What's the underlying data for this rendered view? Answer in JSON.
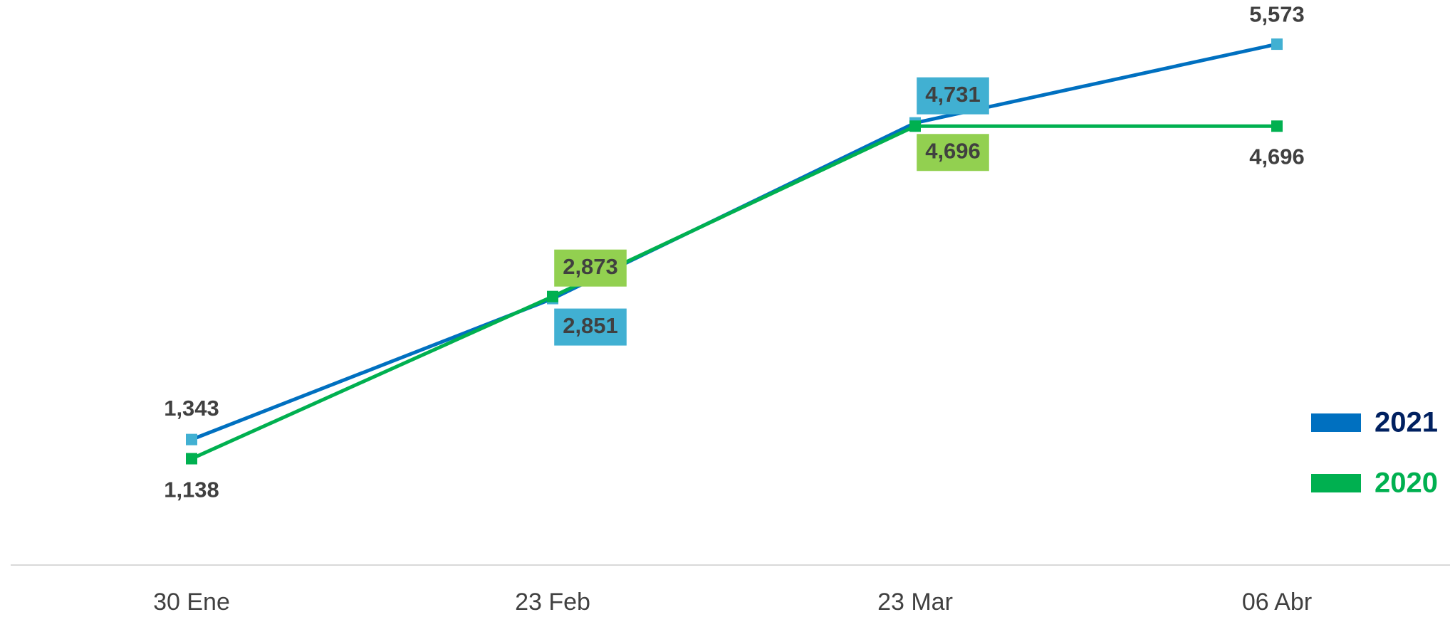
{
  "chart_data": {
    "type": "line",
    "categories": [
      "30 Ene",
      "23 Feb",
      "23 Mar",
      "06 Abr"
    ],
    "series": [
      {
        "name": "2021",
        "color": "#0070c0",
        "values": [
          1343,
          2851,
          4731,
          5573
        ],
        "value_labels": [
          "1,343",
          "2,851",
          "4,731",
          "5,573"
        ]
      },
      {
        "name": "2020",
        "color": "#00b050",
        "values": [
          1138,
          2873,
          4696,
          4696
        ],
        "value_labels": [
          "1,138",
          "2,873",
          "4,696",
          "4,696"
        ]
      }
    ],
    "ylim": [
      0,
      6000
    ],
    "legend": "right"
  }
}
